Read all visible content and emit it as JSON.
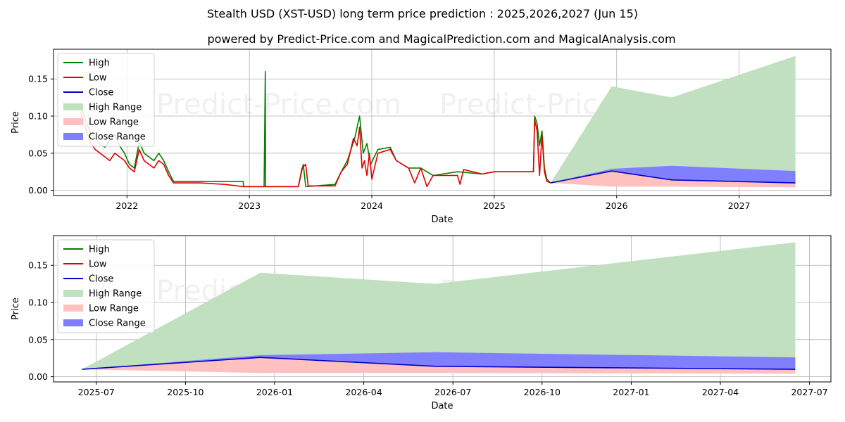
{
  "header": {
    "title": "Stealth USD (XST-USD) long term price prediction : 2025,2026,2027 (Jun 15)",
    "subtitle": "powered by Predict-Price.com and MagicalPrediction.com and MagicalAnalysis.com"
  },
  "watermark": "Predict-Price.com",
  "colors": {
    "high": "#008000",
    "low": "#e00000",
    "close": "#0000cc",
    "high_range": "#c0e0c0",
    "low_range": "#ffc0c0",
    "close_range": "#8080ff"
  },
  "chart_data": [
    {
      "type": "line",
      "name": "top-full-history",
      "xlabel": "Date",
      "ylabel": "Price",
      "xlim": [
        2021.4,
        2027.75
      ],
      "ylim": [
        -0.007,
        0.19
      ],
      "grid": true,
      "legend_position": "top-left",
      "xticks": [
        {
          "v": 2022.0,
          "label": "2022"
        },
        {
          "v": 2023.0,
          "label": "2023"
        },
        {
          "v": 2024.0,
          "label": "2024"
        },
        {
          "v": 2025.0,
          "label": "2025"
        },
        {
          "v": 2026.0,
          "label": "2026"
        },
        {
          "v": 2027.0,
          "label": "2027"
        }
      ],
      "yticks": [
        {
          "v": 0.0,
          "label": "0.00"
        },
        {
          "v": 0.05,
          "label": "0.05"
        },
        {
          "v": 0.1,
          "label": "0.10"
        },
        {
          "v": 0.15,
          "label": "0.15"
        }
      ],
      "legend": [
        "High",
        "Low",
        "Close",
        "High Range",
        "Low Range",
        "Close Range"
      ],
      "series": [
        {
          "name": "High",
          "points": [
            [
              2021.62,
              0.115
            ],
            [
              2021.66,
              0.095
            ],
            [
              2021.7,
              0.078
            ],
            [
              2021.74,
              0.07
            ],
            [
              2021.78,
              0.062
            ],
            [
              2021.82,
              0.058
            ],
            [
              2021.86,
              0.068
            ],
            [
              2021.9,
              0.075
            ],
            [
              2021.94,
              0.06
            ],
            [
              2021.98,
              0.05
            ],
            [
              2022.02,
              0.035
            ],
            [
              2022.06,
              0.03
            ],
            [
              2022.1,
              0.065
            ],
            [
              2022.14,
              0.05
            ],
            [
              2022.18,
              0.045
            ],
            [
              2022.22,
              0.04
            ],
            [
              2022.26,
              0.05
            ],
            [
              2022.3,
              0.04
            ],
            [
              2022.34,
              0.025
            ],
            [
              2022.38,
              0.012
            ],
            [
              2022.42,
              0.012
            ],
            [
              2022.6,
              0.012
            ],
            [
              2022.8,
              0.012
            ],
            [
              2022.95,
              0.012
            ],
            [
              2022.952,
              0.005
            ],
            [
              2023.12,
              0.005
            ],
            [
              2023.13,
              0.16
            ],
            [
              2023.132,
              0.005
            ],
            [
              2023.4,
              0.005
            ],
            [
              2023.44,
              0.035
            ],
            [
              2023.46,
              0.005
            ],
            [
              2023.7,
              0.008
            ],
            [
              2023.75,
              0.025
            ],
            [
              2023.8,
              0.04
            ],
            [
              2023.86,
              0.07
            ],
            [
              2023.9,
              0.1
            ],
            [
              2023.93,
              0.05
            ],
            [
              2023.96,
              0.063
            ],
            [
              2023.99,
              0.035
            ],
            [
              2024.05,
              0.055
            ],
            [
              2024.15,
              0.058
            ],
            [
              2024.2,
              0.04
            ],
            [
              2024.3,
              0.03
            ],
            [
              2024.4,
              0.03
            ],
            [
              2024.5,
              0.02
            ],
            [
              2024.7,
              0.025
            ],
            [
              2024.9,
              0.022
            ],
            [
              2025.0,
              0.025
            ],
            [
              2025.2,
              0.025
            ],
            [
              2025.32,
              0.025
            ],
            [
              2025.33,
              0.1
            ],
            [
              2025.35,
              0.09
            ],
            [
              2025.37,
              0.06
            ],
            [
              2025.39,
              0.08
            ],
            [
              2025.41,
              0.03
            ],
            [
              2025.43,
              0.015
            ],
            [
              2025.46,
              0.01
            ]
          ]
        },
        {
          "name": "Low",
          "points": [
            [
              2021.62,
              0.105
            ],
            [
              2021.66,
              0.085
            ],
            [
              2021.7,
              0.065
            ],
            [
              2021.74,
              0.055
            ],
            [
              2021.78,
              0.05
            ],
            [
              2021.82,
              0.045
            ],
            [
              2021.86,
              0.04
            ],
            [
              2021.9,
              0.05
            ],
            [
              2021.94,
              0.045
            ],
            [
              2021.98,
              0.04
            ],
            [
              2022.02,
              0.03
            ],
            [
              2022.06,
              0.025
            ],
            [
              2022.1,
              0.055
            ],
            [
              2022.14,
              0.04
            ],
            [
              2022.18,
              0.035
            ],
            [
              2022.22,
              0.03
            ],
            [
              2022.26,
              0.04
            ],
            [
              2022.3,
              0.035
            ],
            [
              2022.34,
              0.02
            ],
            [
              2022.38,
              0.01
            ],
            [
              2022.42,
              0.01
            ],
            [
              2022.6,
              0.01
            ],
            [
              2022.8,
              0.008
            ],
            [
              2022.95,
              0.005
            ],
            [
              2023.13,
              0.005
            ],
            [
              2023.3,
              0.005
            ],
            [
              2023.4,
              0.005
            ],
            [
              2023.43,
              0.03
            ],
            [
              2023.46,
              0.035
            ],
            [
              2023.48,
              0.006
            ],
            [
              2023.7,
              0.006
            ],
            [
              2023.75,
              0.025
            ],
            [
              2023.8,
              0.035
            ],
            [
              2023.85,
              0.07
            ],
            [
              2023.88,
              0.06
            ],
            [
              2023.9,
              0.085
            ],
            [
              2023.92,
              0.03
            ],
            [
              2023.94,
              0.04
            ],
            [
              2023.96,
              0.02
            ],
            [
              2023.98,
              0.05
            ],
            [
              2024.0,
              0.015
            ],
            [
              2024.05,
              0.05
            ],
            [
              2024.15,
              0.055
            ],
            [
              2024.2,
              0.04
            ],
            [
              2024.3,
              0.03
            ],
            [
              2024.35,
              0.01
            ],
            [
              2024.4,
              0.03
            ],
            [
              2024.45,
              0.005
            ],
            [
              2024.5,
              0.02
            ],
            [
              2024.7,
              0.02
            ],
            [
              2024.72,
              0.008
            ],
            [
              2024.75,
              0.028
            ],
            [
              2024.9,
              0.022
            ],
            [
              2025.0,
              0.025
            ],
            [
              2025.2,
              0.025
            ],
            [
              2025.32,
              0.025
            ],
            [
              2025.33,
              0.095
            ],
            [
              2025.35,
              0.08
            ],
            [
              2025.37,
              0.02
            ],
            [
              2025.39,
              0.075
            ],
            [
              2025.41,
              0.025
            ],
            [
              2025.43,
              0.012
            ],
            [
              2025.46,
              0.01
            ]
          ]
        },
        {
          "name": "Close",
          "points": [
            [
              2025.46,
              0.01
            ],
            [
              2025.96,
              0.026
            ],
            [
              2026.45,
              0.014
            ],
            [
              2027.46,
              0.01
            ]
          ]
        }
      ],
      "ranges": [
        {
          "name": "High Range",
          "upper": [
            [
              2025.46,
              0.01
            ],
            [
              2025.96,
              0.14
            ],
            [
              2026.45,
              0.125
            ],
            [
              2027.46,
              0.181
            ]
          ],
          "lower": [
            [
              2025.46,
              0.01
            ],
            [
              2025.96,
              0.026
            ],
            [
              2026.45,
              0.014
            ],
            [
              2027.46,
              0.01
            ]
          ]
        },
        {
          "name": "Low Range",
          "upper": [
            [
              2025.46,
              0.01
            ],
            [
              2025.96,
              0.026
            ],
            [
              2026.45,
              0.014
            ],
            [
              2027.46,
              0.01
            ]
          ],
          "lower": [
            [
              2025.46,
              0.01
            ],
            [
              2025.96,
              0.005
            ],
            [
              2026.45,
              0.005
            ],
            [
              2027.46,
              0.004
            ]
          ]
        },
        {
          "name": "Close Range",
          "upper": [
            [
              2025.46,
              0.01
            ],
            [
              2025.96,
              0.029
            ],
            [
              2026.45,
              0.033
            ],
            [
              2027.46,
              0.026
            ]
          ],
          "lower": [
            [
              2025.46,
              0.01
            ],
            [
              2025.96,
              0.026
            ],
            [
              2026.45,
              0.014
            ],
            [
              2027.46,
              0.01
            ]
          ]
        }
      ]
    },
    {
      "type": "line",
      "name": "bottom-prediction-zoom",
      "xlabel": "Date",
      "ylabel": "Price",
      "xlim": [
        2025.38,
        2027.56
      ],
      "ylim": [
        -0.007,
        0.19
      ],
      "grid": true,
      "legend_position": "top-left",
      "xticks": [
        {
          "v": 2025.5,
          "label": "2025-07"
        },
        {
          "v": 2025.75,
          "label": "2025-10"
        },
        {
          "v": 2026.0,
          "label": "2026-01"
        },
        {
          "v": 2026.25,
          "label": "2026-04"
        },
        {
          "v": 2026.5,
          "label": "2026-07"
        },
        {
          "v": 2026.75,
          "label": "2026-10"
        },
        {
          "v": 2027.0,
          "label": "2027-01"
        },
        {
          "v": 2027.25,
          "label": "2027-04"
        },
        {
          "v": 2027.5,
          "label": "2027-07"
        }
      ],
      "yticks": [
        {
          "v": 0.0,
          "label": "0.00"
        },
        {
          "v": 0.05,
          "label": "0.05"
        },
        {
          "v": 0.1,
          "label": "0.10"
        },
        {
          "v": 0.15,
          "label": "0.15"
        }
      ],
      "legend": [
        "High",
        "Low",
        "Close",
        "High Range",
        "Low Range",
        "Close Range"
      ],
      "series": [
        {
          "name": "Close",
          "points": [
            [
              2025.46,
              0.01
            ],
            [
              2025.96,
              0.026
            ],
            [
              2026.45,
              0.014
            ],
            [
              2027.46,
              0.01
            ]
          ]
        }
      ],
      "ranges": [
        {
          "name": "High Range",
          "upper": [
            [
              2025.46,
              0.01
            ],
            [
              2025.96,
              0.14
            ],
            [
              2026.45,
              0.125
            ],
            [
              2027.46,
              0.181
            ]
          ],
          "lower": [
            [
              2025.46,
              0.01
            ],
            [
              2025.96,
              0.026
            ],
            [
              2026.45,
              0.014
            ],
            [
              2027.46,
              0.01
            ]
          ]
        },
        {
          "name": "Low Range",
          "upper": [
            [
              2025.46,
              0.01
            ],
            [
              2025.96,
              0.026
            ],
            [
              2026.45,
              0.014
            ],
            [
              2027.46,
              0.01
            ]
          ],
          "lower": [
            [
              2025.46,
              0.01
            ],
            [
              2025.96,
              0.005
            ],
            [
              2026.45,
              0.005
            ],
            [
              2027.46,
              0.004
            ]
          ]
        },
        {
          "name": "Close Range",
          "upper": [
            [
              2025.46,
              0.01
            ],
            [
              2025.96,
              0.029
            ],
            [
              2026.45,
              0.033
            ],
            [
              2027.46,
              0.026
            ]
          ],
          "lower": [
            [
              2025.46,
              0.01
            ],
            [
              2025.96,
              0.026
            ],
            [
              2026.45,
              0.014
            ],
            [
              2027.46,
              0.01
            ]
          ]
        }
      ]
    }
  ]
}
